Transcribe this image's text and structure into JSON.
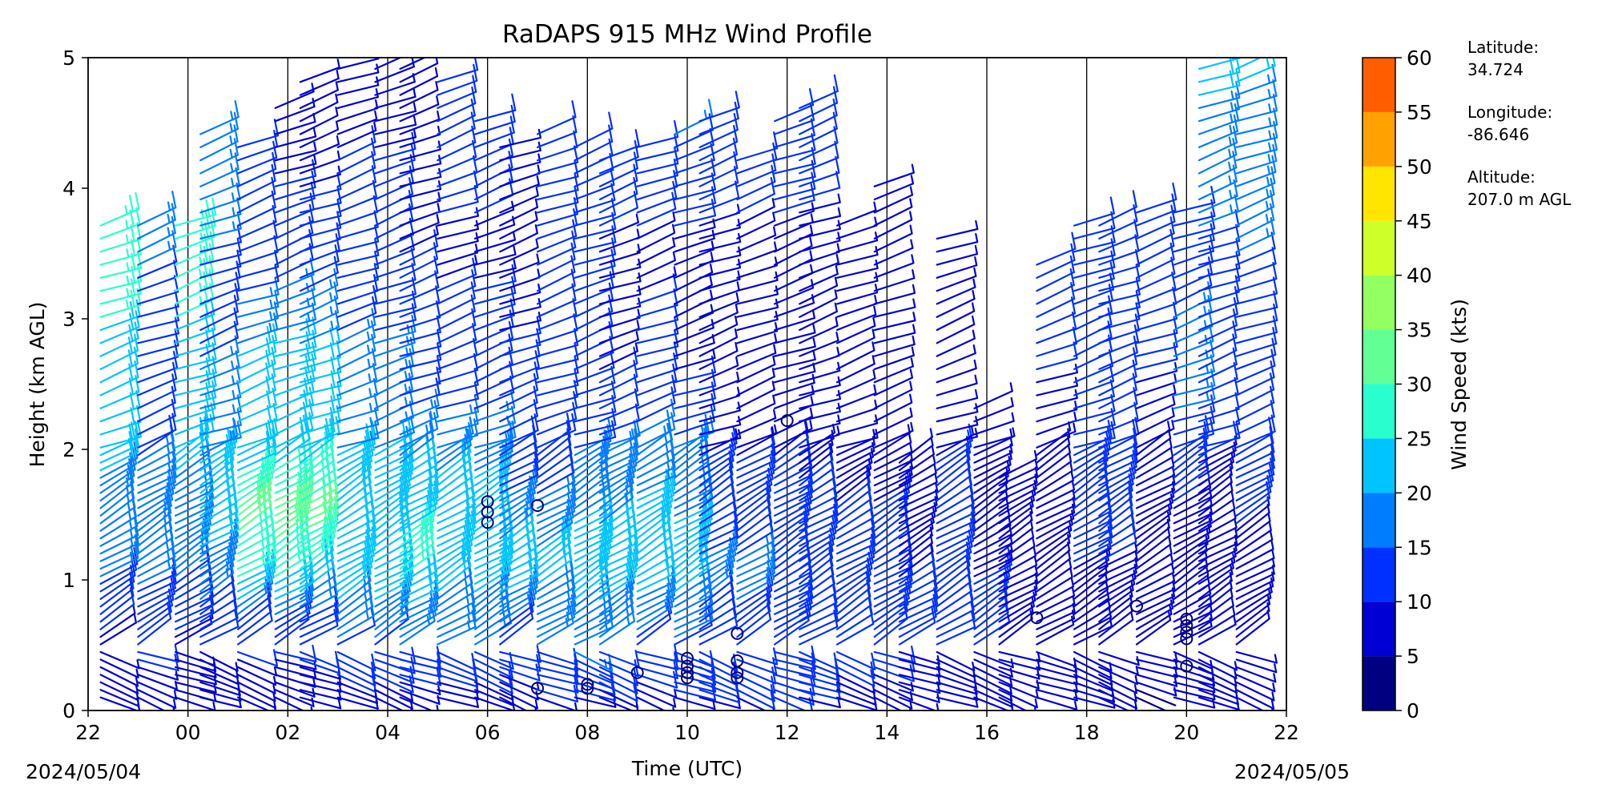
{
  "chart_data": {
    "type": "wind_barb_profile",
    "title": "RaDAPS 915 MHz Wind Profile",
    "xlabel": "Time (UTC)",
    "ylabel": "Height (km AGL)",
    "x_ticks": [
      "22",
      "00",
      "02",
      "04",
      "06",
      "08",
      "10",
      "12",
      "14",
      "16",
      "18",
      "20",
      "22"
    ],
    "x_range_hours": [
      22,
      46
    ],
    "start_date": "2024/05/04",
    "end_date": "2024/05/05",
    "y_ticks": [
      "0",
      "1",
      "2",
      "3",
      "4",
      "5"
    ],
    "ylim": [
      0,
      5
    ],
    "grid": "vertical lines every 2 hours",
    "colorbar": {
      "label": "Wind Speed (kts)",
      "ticks": [
        "0",
        "5",
        "10",
        "15",
        "20",
        "25",
        "30",
        "35",
        "40",
        "45",
        "50",
        "55",
        "60"
      ],
      "colors": [
        "#000080",
        "#0000d4",
        "#0030ff",
        "#007cff",
        "#00c4ff",
        "#29ffce",
        "#62ff95",
        "#94ff62",
        "#ceff29",
        "#ffe500",
        "#ffa100",
        "#ff5d00",
        "#e90000",
        "#800000"
      ]
    },
    "station": {
      "latitude_label": "Latitude:",
      "latitude": "34.724",
      "longitude_label": "Longitude:",
      "longitude": "-86.646",
      "altitude_label": "Altitude:",
      "altitude": "207.0 m AGL"
    },
    "profiles": [
      {
        "time": 22.25,
        "top": 3.8,
        "speeds": [
          [
            0,
            6
          ],
          [
            0.6,
            10
          ],
          [
            1.0,
            15
          ],
          [
            1.8,
            20
          ],
          [
            2.5,
            24
          ],
          [
            3.4,
            26
          ],
          [
            3.8,
            30
          ]
        ]
      },
      {
        "time": 23.0,
        "top": 3.8,
        "speeds": [
          [
            0,
            7
          ],
          [
            0.6,
            12
          ],
          [
            1.2,
            17
          ],
          [
            1.9,
            15
          ],
          [
            3.0,
            13
          ],
          [
            3.8,
            18
          ]
        ]
      },
      {
        "time": 23.75,
        "top": 3.8,
        "speeds": [
          [
            0,
            6
          ],
          [
            0.6,
            10
          ],
          [
            1.0,
            15
          ],
          [
            1.8,
            20
          ],
          [
            2.5,
            24
          ],
          [
            3.4,
            26
          ],
          [
            3.8,
            30
          ]
        ]
      },
      {
        "time": 24.25,
        "top": 4.45,
        "speeds": [
          [
            0,
            6
          ],
          [
            0.6,
            11
          ],
          [
            1.0,
            18
          ],
          [
            1.6,
            23
          ],
          [
            2.2,
            17
          ],
          [
            3.2,
            13
          ],
          [
            4.45,
            20
          ]
        ]
      },
      {
        "time": 25.0,
        "top": 4.4,
        "speeds": [
          [
            0,
            4
          ],
          [
            0.7,
            14
          ],
          [
            1.0,
            26
          ],
          [
            1.5,
            32
          ],
          [
            2.0,
            20
          ],
          [
            2.6,
            22
          ],
          [
            3.5,
            10
          ],
          [
            4.4,
            10
          ]
        ]
      },
      {
        "time": 25.75,
        "top": 4.7,
        "speeds": [
          [
            0,
            4
          ],
          [
            0.7,
            14
          ],
          [
            1.0,
            26
          ],
          [
            1.5,
            33
          ],
          [
            2.0,
            22
          ],
          [
            2.6,
            24
          ],
          [
            3.5,
            11
          ],
          [
            4.7,
            9
          ]
        ]
      },
      {
        "time": 26.25,
        "top": 4.9,
        "speeds": [
          [
            0,
            5
          ],
          [
            0.7,
            14
          ],
          [
            1.0,
            24
          ],
          [
            1.5,
            32
          ],
          [
            2.0,
            22
          ],
          [
            2.6,
            22
          ],
          [
            3.5,
            11
          ],
          [
            4.9,
            8
          ]
        ]
      },
      {
        "time": 27.0,
        "top": 5.0,
        "speeds": [
          [
            0,
            5
          ],
          [
            0.7,
            18
          ],
          [
            1.2,
            25
          ],
          [
            1.8,
            21
          ],
          [
            2.5,
            17
          ],
          [
            3.5,
            11
          ],
          [
            5.0,
            9
          ]
        ]
      },
      {
        "time": 27.75,
        "top": 5.0,
        "speeds": [
          [
            0,
            5
          ],
          [
            0.7,
            18
          ],
          [
            1.2,
            25
          ],
          [
            1.8,
            21
          ],
          [
            2.5,
            17
          ],
          [
            3.5,
            11
          ],
          [
            5.0,
            9
          ]
        ]
      },
      {
        "time": 28.25,
        "top": 5.0,
        "speeds": [
          [
            0,
            5
          ],
          [
            0.6,
            17
          ],
          [
            1.1,
            27
          ],
          [
            1.7,
            22
          ],
          [
            2.4,
            14
          ],
          [
            3.5,
            10
          ],
          [
            5.0,
            9
          ]
        ]
      },
      {
        "time": 29.0,
        "top": 4.9,
        "speeds": [
          [
            0,
            6
          ],
          [
            0.6,
            17
          ],
          [
            1.2,
            24
          ],
          [
            1.8,
            20
          ],
          [
            2.4,
            13
          ],
          [
            3.5,
            9
          ],
          [
            4.9,
            14
          ]
        ]
      },
      {
        "time": 29.75,
        "top": 4.6,
        "speeds": [
          [
            0,
            6
          ],
          [
            0.6,
            17
          ],
          [
            1.2,
            24
          ],
          [
            1.8,
            20
          ],
          [
            2.4,
            13
          ],
          [
            3.5,
            9
          ],
          [
            4.6,
            14
          ]
        ]
      },
      {
        "time": 30.25,
        "top": 4.4,
        "speeds": [
          [
            0,
            7
          ],
          [
            0.6,
            13
          ],
          [
            1.0,
            24
          ],
          [
            1.9,
            11
          ],
          [
            2.6,
            11
          ],
          [
            3.5,
            8
          ],
          [
            4.4,
            9
          ]
        ]
      },
      {
        "time": 31.0,
        "top": 4.5,
        "speeds": [
          [
            0,
            8
          ],
          [
            0.5,
            15
          ],
          [
            1.1,
            22
          ],
          [
            1.8,
            13
          ],
          [
            2.6,
            14
          ],
          [
            3.5,
            11
          ],
          [
            4.5,
            10
          ]
        ]
      },
      {
        "time": 31.75,
        "top": 4.4,
        "speeds": [
          [
            0,
            8
          ],
          [
            0.5,
            16
          ],
          [
            1.1,
            24
          ],
          [
            1.8,
            16
          ],
          [
            2.5,
            12
          ],
          [
            3.5,
            10
          ],
          [
            4.4,
            12
          ]
        ]
      },
      {
        "time": 32.25,
        "top": 4.3,
        "speeds": [
          [
            0,
            7
          ],
          [
            0.5,
            15
          ],
          [
            1.0,
            23
          ],
          [
            1.9,
            16
          ],
          [
            2.6,
            10
          ],
          [
            3.5,
            9
          ],
          [
            4.3,
            13
          ]
        ]
      },
      {
        "time": 33.0,
        "top": 4.4,
        "speeds": [
          [
            0,
            7
          ],
          [
            0.6,
            15
          ],
          [
            1.1,
            24
          ],
          [
            1.9,
            18
          ],
          [
            2.5,
            12
          ],
          [
            3.5,
            9
          ],
          [
            4.4,
            14
          ]
        ]
      },
      {
        "time": 33.75,
        "top": 4.5,
        "speeds": [
          [
            0,
            8
          ],
          [
            0.6,
            16
          ],
          [
            1.1,
            23
          ],
          [
            1.8,
            17
          ],
          [
            2.6,
            10
          ],
          [
            3.5,
            9
          ],
          [
            4.5,
            16
          ]
        ]
      },
      {
        "time": 34.25,
        "top": 4.6,
        "speeds": [
          [
            0,
            9
          ],
          [
            0.5,
            13
          ],
          [
            1.0,
            16
          ],
          [
            1.9,
            10
          ],
          [
            2.6,
            9
          ],
          [
            3.5,
            9
          ],
          [
            4.6,
            14
          ]
        ]
      },
      {
        "time": 35.0,
        "top": 4.3,
        "speeds": [
          [
            0,
            9
          ],
          [
            0.5,
            13
          ],
          [
            1.0,
            16
          ],
          [
            1.9,
            10
          ],
          [
            2.6,
            9
          ],
          [
            3.5,
            9
          ],
          [
            4.3,
            12
          ]
        ]
      },
      {
        "time": 35.75,
        "top": 4.6,
        "speeds": [
          [
            0,
            9
          ],
          [
            0.5,
            14
          ],
          [
            1.1,
            15
          ],
          [
            1.9,
            10
          ],
          [
            2.6,
            9
          ],
          [
            3.5,
            9
          ],
          [
            4.6,
            14
          ]
        ]
      },
      {
        "time": 36.25,
        "top": 4.7,
        "speeds": [
          [
            0,
            9
          ],
          [
            0.5,
            13
          ],
          [
            1.0,
            15
          ],
          [
            1.9,
            9
          ],
          [
            2.6,
            9
          ],
          [
            3.5,
            9
          ],
          [
            4.7,
            12
          ]
        ]
      },
      {
        "time": 37.0,
        "top": 3.8,
        "speeds": [
          [
            0,
            7
          ],
          [
            0.5,
            12
          ],
          [
            1.0,
            12
          ],
          [
            1.9,
            9
          ],
          [
            2.6,
            9
          ],
          [
            3.8,
            10
          ]
        ]
      },
      {
        "time": 37.75,
        "top": 4.1,
        "speeds": [
          [
            0,
            7
          ],
          [
            0.5,
            12
          ],
          [
            1.0,
            12
          ],
          [
            1.9,
            9
          ],
          [
            2.6,
            8
          ],
          [
            4.1,
            10
          ]
        ]
      },
      {
        "time": 38.25,
        "top": 1.9,
        "speeds": [
          [
            0,
            6
          ],
          [
            0.5,
            10
          ],
          [
            1.0,
            10
          ],
          [
            1.9,
            9
          ]
        ]
      },
      {
        "time": 39.0,
        "top": 3.7,
        "speeds": [
          [
            0,
            6
          ],
          [
            0.5,
            10
          ],
          [
            1.0,
            11
          ],
          [
            1.9,
            10
          ],
          [
            2.6,
            8
          ],
          [
            3.7,
            10
          ]
        ]
      },
      {
        "time": 39.75,
        "top": 2.4,
        "speeds": [
          [
            0,
            6
          ],
          [
            0.5,
            10
          ],
          [
            1.0,
            10
          ],
          [
            1.9,
            8
          ],
          [
            2.4,
            10
          ]
        ]
      },
      {
        "time": 40.25,
        "top": 1.8,
        "speeds": [
          [
            0,
            5
          ],
          [
            0.5,
            8
          ],
          [
            1.0,
            9
          ],
          [
            1.8,
            8
          ]
        ]
      },
      {
        "time": 41.0,
        "top": 3.5,
        "speeds": [
          [
            0,
            5
          ],
          [
            0.5,
            8
          ],
          [
            1.0,
            9
          ],
          [
            1.9,
            9
          ],
          [
            2.6,
            10
          ],
          [
            3.5,
            11
          ]
        ]
      },
      {
        "time": 41.75,
        "top": 3.8,
        "speeds": [
          [
            0,
            5
          ],
          [
            0.5,
            8
          ],
          [
            1.1,
            10
          ],
          [
            1.9,
            10
          ],
          [
            2.7,
            12
          ],
          [
            3.8,
            12
          ]
        ]
      },
      {
        "time": 42.25,
        "top": 3.8,
        "speeds": [
          [
            0,
            5
          ],
          [
            0.5,
            8
          ],
          [
            1.1,
            10
          ],
          [
            1.9,
            10
          ],
          [
            2.7,
            12
          ],
          [
            3.8,
            12
          ]
        ]
      },
      {
        "time": 43.0,
        "top": 3.9,
        "speeds": [
          [
            0,
            4
          ],
          [
            0.4,
            6
          ],
          [
            0.8,
            8
          ],
          [
            1.3,
            8
          ],
          [
            1.8,
            8
          ],
          [
            2.6,
            10
          ],
          [
            3.9,
            14
          ]
        ]
      },
      {
        "time": 43.75,
        "top": 3.9,
        "speeds": [
          [
            0,
            5
          ],
          [
            0.4,
            8
          ],
          [
            0.9,
            10
          ],
          [
            1.5,
            9
          ],
          [
            1.9,
            14
          ],
          [
            2.6,
            16
          ],
          [
            3.9,
            13
          ]
        ]
      },
      {
        "time": 44.25,
        "top": 5.0,
        "speeds": [
          [
            0,
            5
          ],
          [
            0.4,
            8
          ],
          [
            0.9,
            9
          ],
          [
            1.4,
            9
          ],
          [
            1.9,
            10
          ],
          [
            2.5,
            12
          ],
          [
            3.5,
            14
          ],
          [
            4.3,
            18
          ],
          [
            5.0,
            22
          ]
        ]
      },
      {
        "time": 45.0,
        "top": 5.0,
        "speeds": [
          [
            0,
            5
          ],
          [
            0.4,
            8
          ],
          [
            0.9,
            9
          ],
          [
            1.4,
            10
          ],
          [
            1.9,
            11
          ],
          [
            2.5,
            13
          ],
          [
            3.5,
            15
          ],
          [
            4.3,
            17
          ],
          [
            5.0,
            22
          ]
        ]
      }
    ],
    "calm_marks": [
      {
        "time": 30.0,
        "height": 1.6
      },
      {
        "time": 30.0,
        "height": 1.52
      },
      {
        "time": 30.0,
        "height": 1.44
      },
      {
        "time": 31.0,
        "height": 1.57
      },
      {
        "time": 31.0,
        "height": 0.17
      },
      {
        "time": 32.0,
        "height": 0.2
      },
      {
        "time": 32.0,
        "height": 0.17
      },
      {
        "time": 33.0,
        "height": 0.29
      },
      {
        "time": 34.0,
        "height": 0.4
      },
      {
        "time": 34.0,
        "height": 0.34
      },
      {
        "time": 34.0,
        "height": 0.29
      },
      {
        "time": 34.0,
        "height": 0.25
      },
      {
        "time": 35.0,
        "height": 0.59
      },
      {
        "time": 35.0,
        "height": 0.38
      },
      {
        "time": 35.0,
        "height": 0.29
      },
      {
        "time": 35.0,
        "height": 0.25
      },
      {
        "time": 36.0,
        "height": 2.22
      },
      {
        "time": 41.0,
        "height": 0.71
      },
      {
        "time": 43.0,
        "height": 0.8
      },
      {
        "time": 44.0,
        "height": 0.7
      },
      {
        "time": 44.0,
        "height": 0.65
      },
      {
        "time": 44.0,
        "height": 0.6
      },
      {
        "time": 44.0,
        "height": 0.55
      },
      {
        "time": 44.0,
        "height": 0.34
      }
    ]
  }
}
